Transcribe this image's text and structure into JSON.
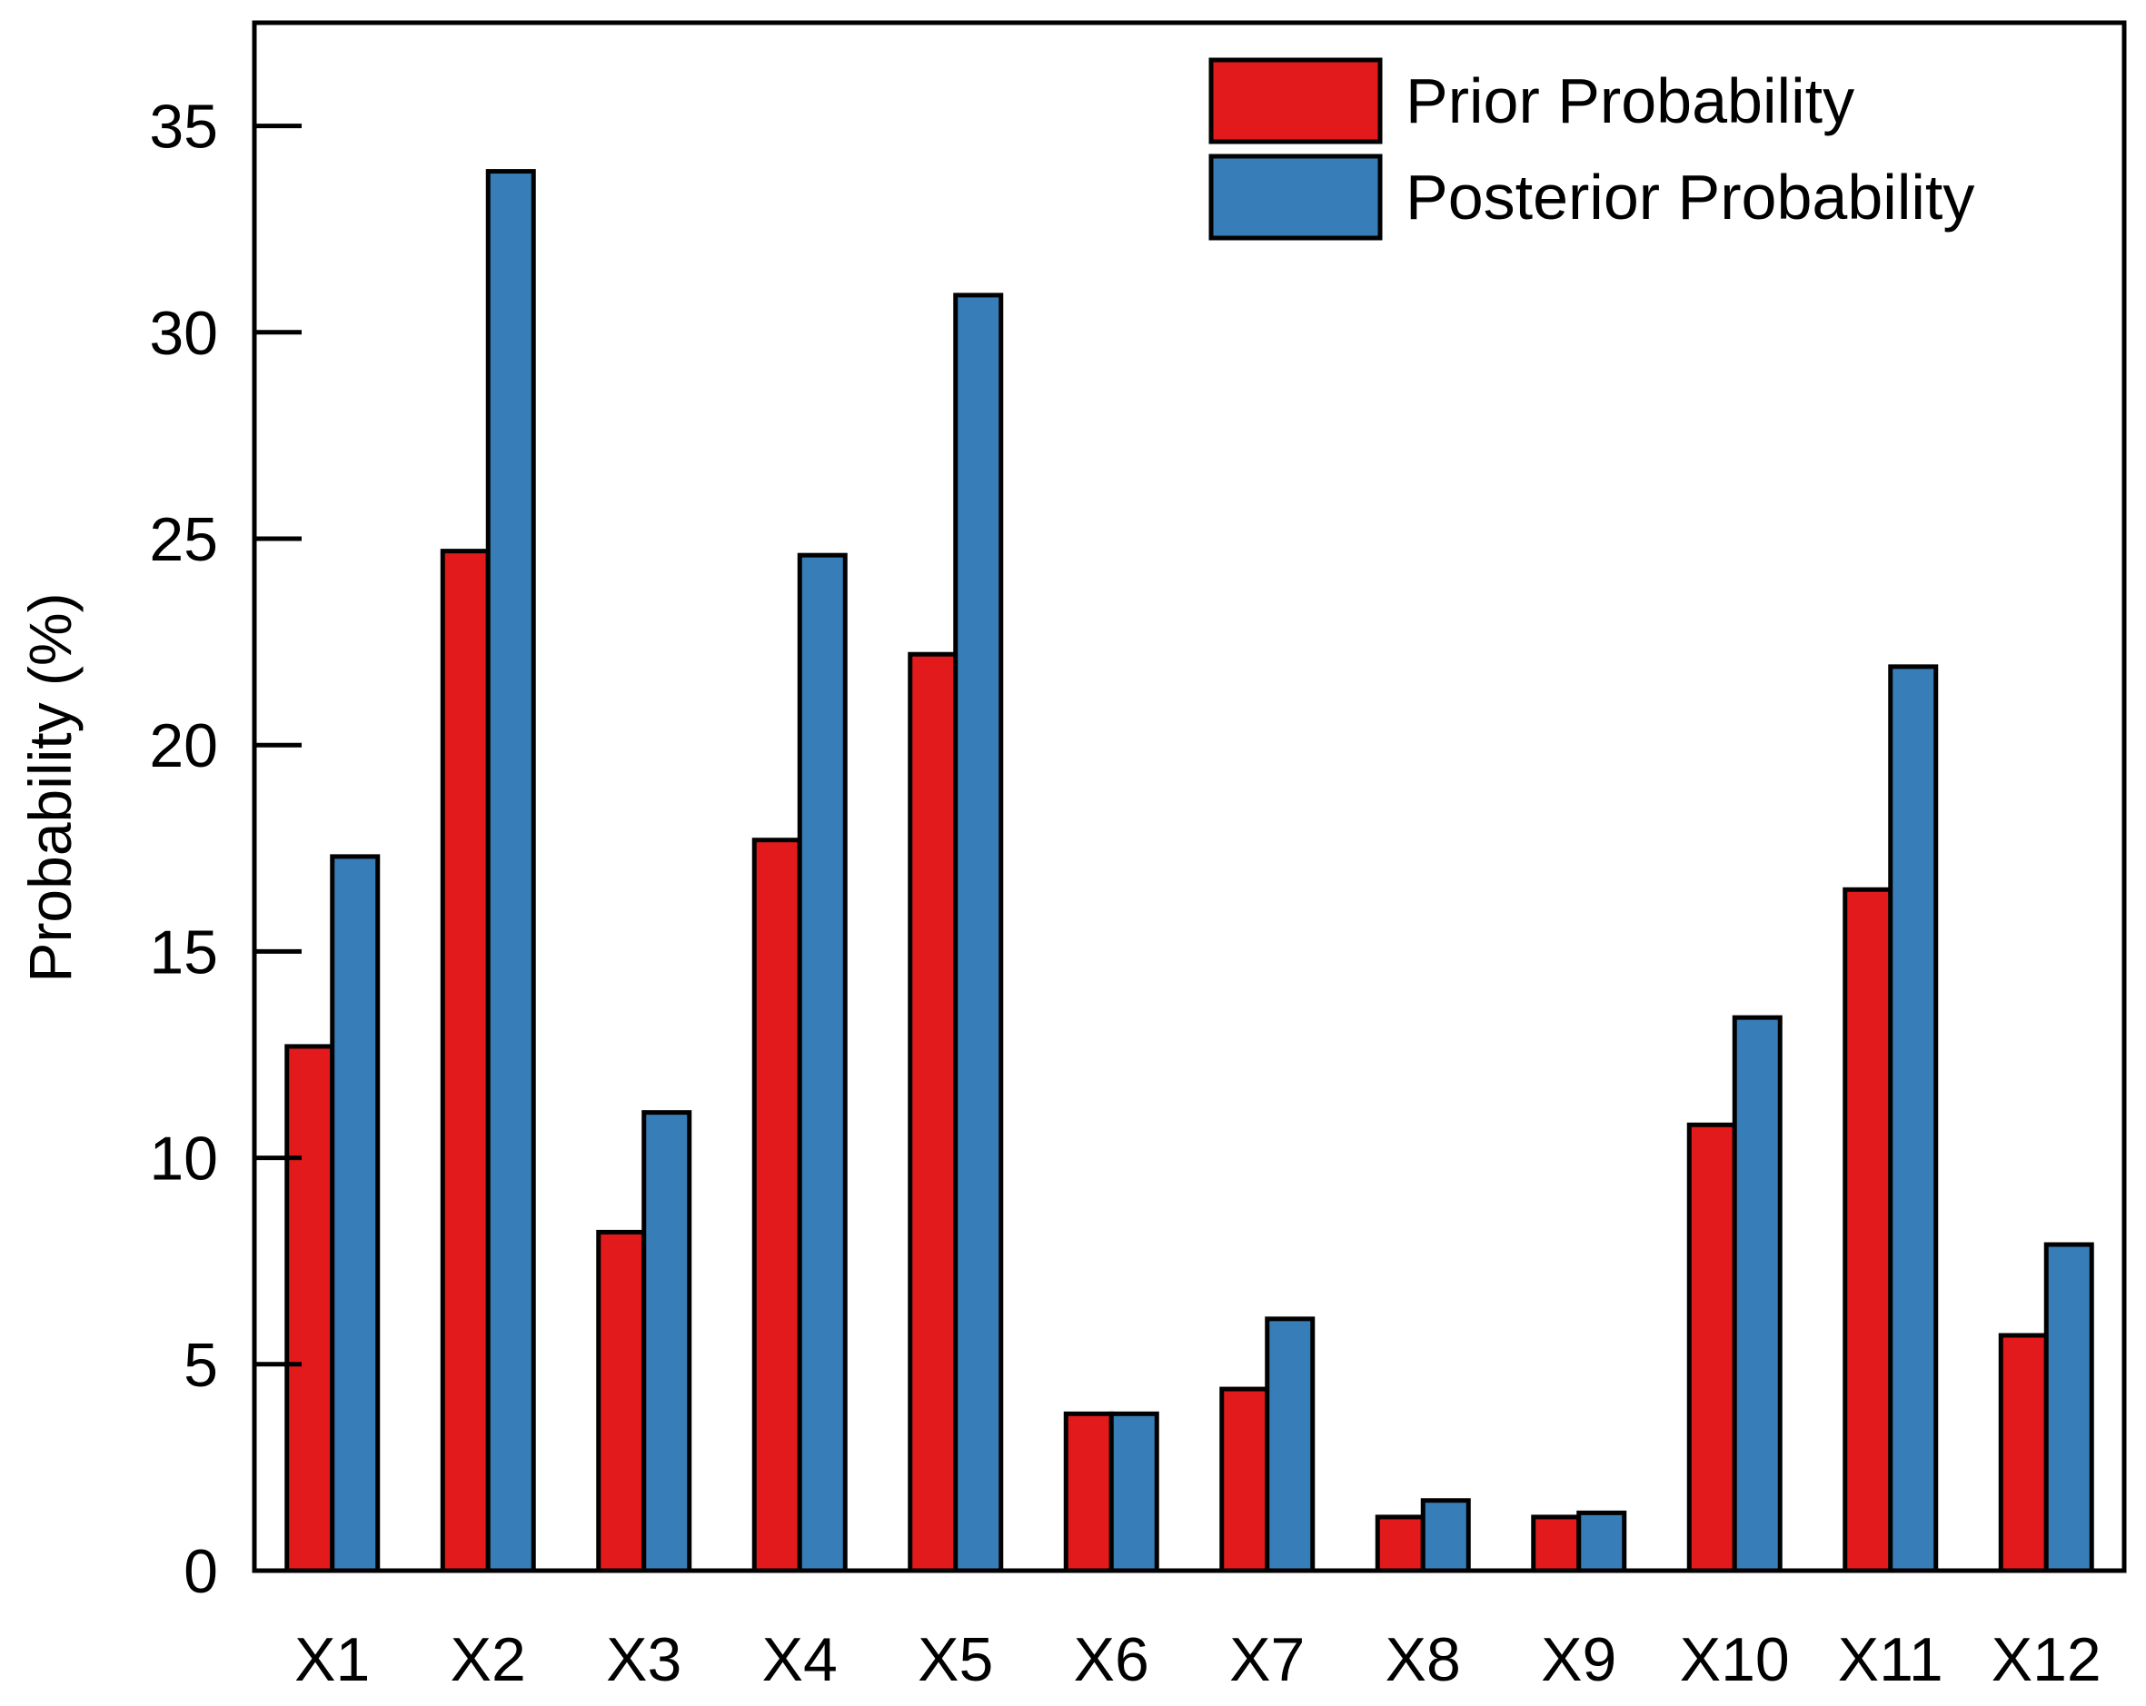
{
  "chart_data": {
    "type": "bar",
    "title": "",
    "xlabel": "",
    "ylabel": "Probability (%)",
    "ylim": [
      0,
      37.5
    ],
    "yticks": [
      0,
      5,
      10,
      15,
      20,
      25,
      30,
      35
    ],
    "grid": false,
    "legend_position": "top-right",
    "categories": [
      "X1",
      "X2",
      "X3",
      "X4",
      "X5",
      "X6",
      "X7",
      "X8",
      "X9",
      "X10",
      "X11",
      "X12"
    ],
    "series": [
      {
        "name": "Prior Probability",
        "color": "#e31a1c",
        "values": [
          12.7,
          24.7,
          8.2,
          17.7,
          22.2,
          3.8,
          4.4,
          1.3,
          1.3,
          10.8,
          16.5,
          5.7
        ]
      },
      {
        "name": "Posterior Probability",
        "color": "#377eb8",
        "values": [
          17.3,
          33.9,
          11.1,
          24.6,
          30.9,
          3.8,
          6.1,
          1.7,
          1.4,
          13.4,
          21.9,
          7.9
        ]
      }
    ]
  }
}
